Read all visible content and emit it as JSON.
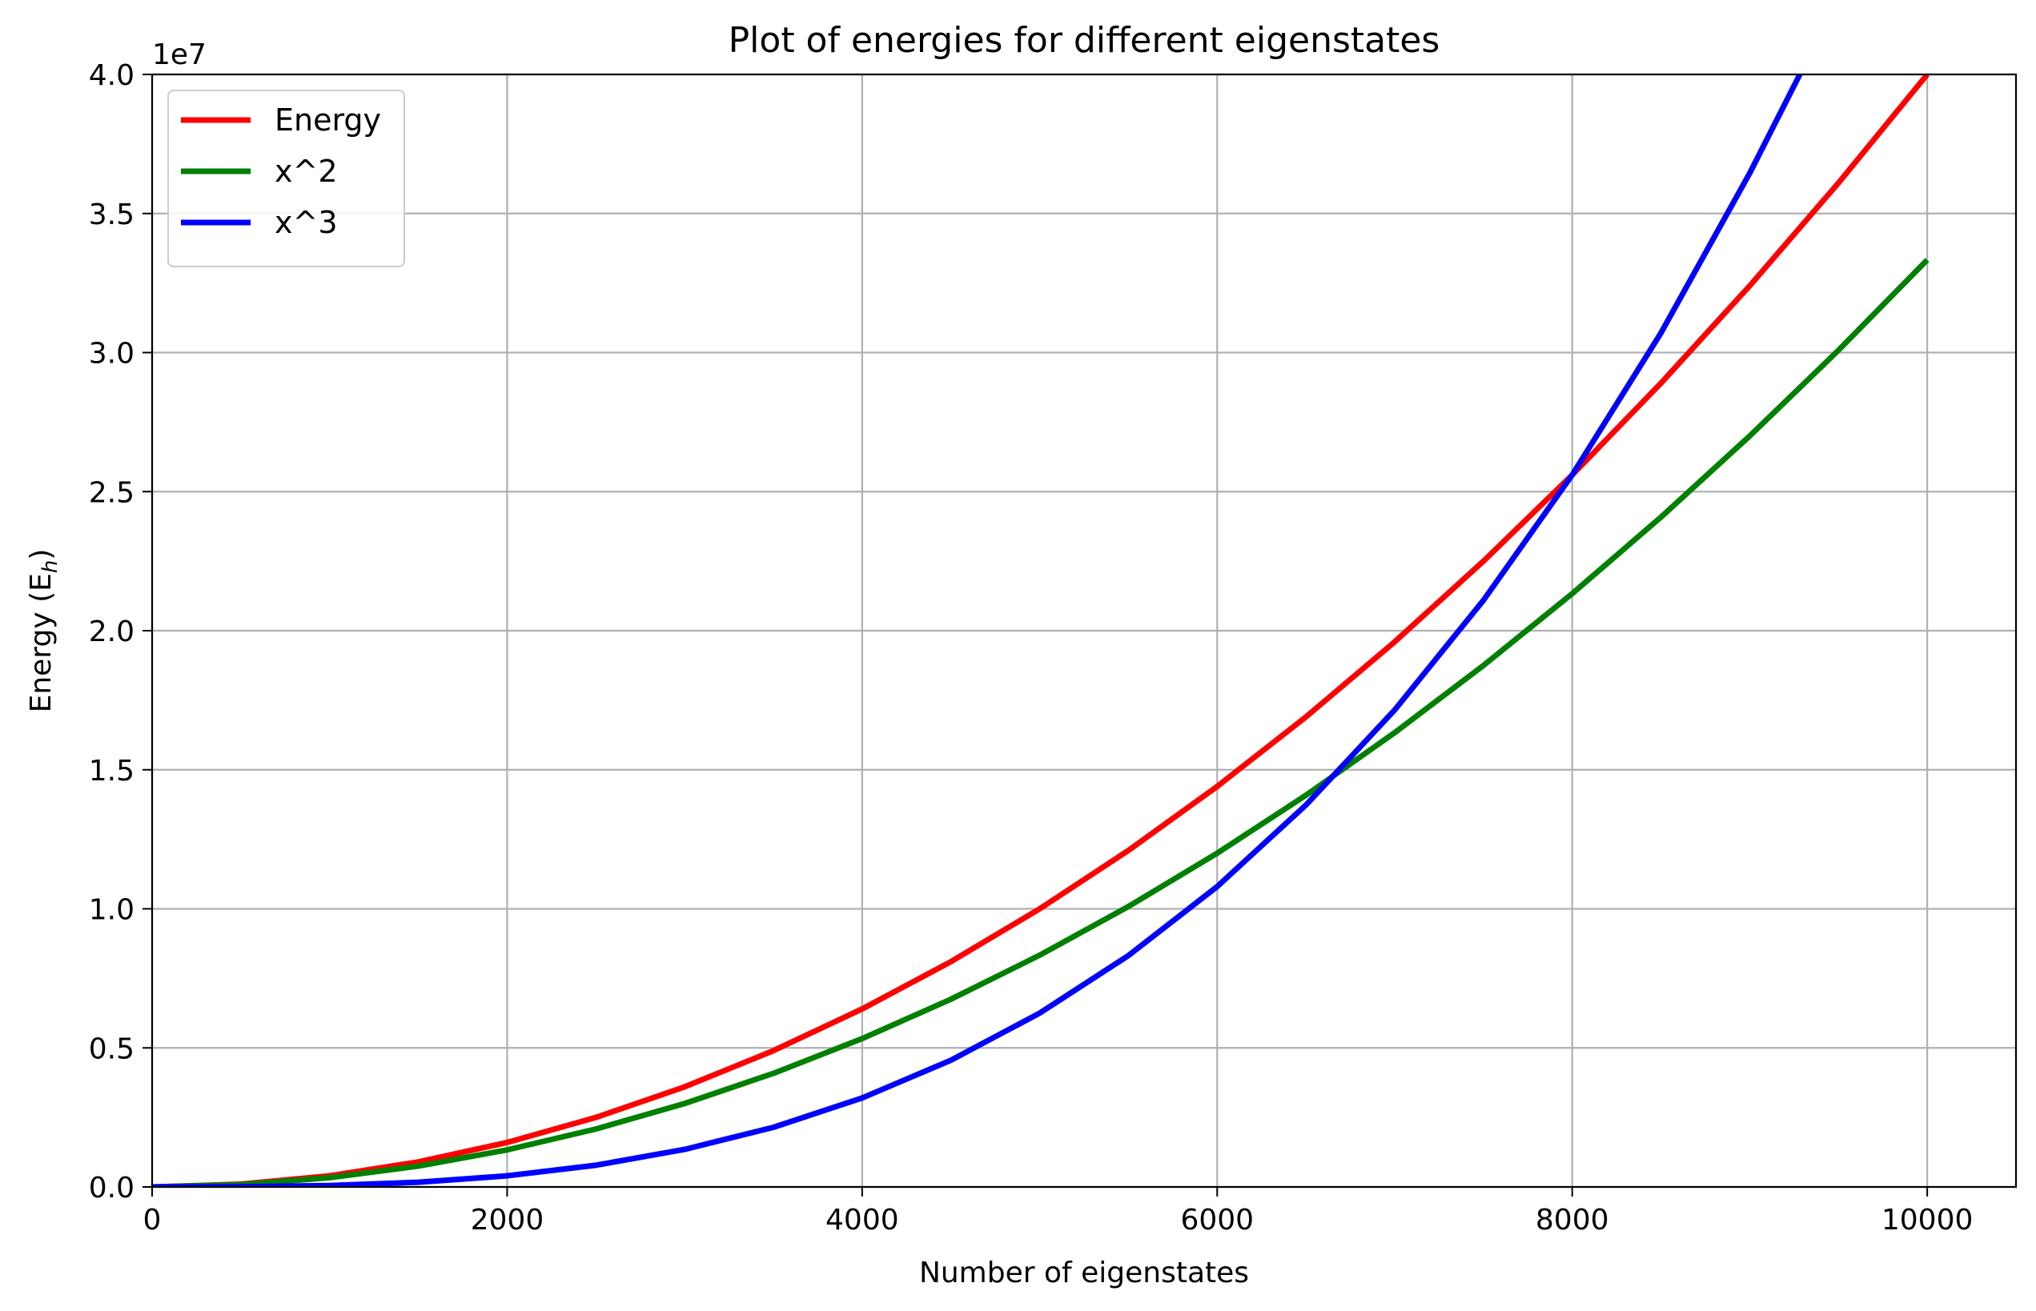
{
  "chart_data": {
    "type": "line",
    "title": "Plot of energies for different eigenstates",
    "xlabel": "Number of eigenstates",
    "ylabel_main": "Energy (E",
    "ylabel_sub": "h",
    "ylabel_close": ")",
    "y_offset_label": "1e7",
    "xlim": [
      0,
      10500
    ],
    "ylim": [
      0,
      40000000
    ],
    "x_ticks": [
      0,
      2000,
      4000,
      6000,
      8000,
      10000
    ],
    "x_tick_labels": [
      "0",
      "2000",
      "4000",
      "6000",
      "8000",
      "10000"
    ],
    "y_ticks": [
      0,
      5000000,
      10000000,
      15000000,
      20000000,
      25000000,
      30000000,
      35000000,
      40000000
    ],
    "y_tick_labels": [
      "0.0",
      "0.5",
      "1.0",
      "1.5",
      "2.0",
      "2.5",
      "3.0",
      "3.5",
      "4.0"
    ],
    "grid": true,
    "legend_position": "top-left",
    "series": [
      {
        "name": "Energy",
        "color": "#ff0000",
        "x": [
          0,
          500,
          1000,
          1500,
          2000,
          2500,
          3000,
          3500,
          4000,
          4500,
          5000,
          5500,
          6000,
          6500,
          7000,
          7500,
          8000,
          8500,
          9000,
          9500,
          10000
        ],
        "y": [
          0,
          100000,
          400000,
          900000,
          1600000,
          2500000,
          3600000,
          4900000,
          6400000,
          8100000,
          10000000,
          12100000,
          14400000,
          16900000,
          19600000,
          22500000,
          25600000,
          28900000,
          32400000,
          36100000,
          40000000
        ]
      },
      {
        "name": "x^2",
        "color": "#008000",
        "x": [
          0,
          500,
          1000,
          1500,
          2000,
          2500,
          3000,
          3500,
          4000,
          4500,
          5000,
          5500,
          6000,
          6500,
          7000,
          7500,
          8000,
          8500,
          9000,
          9500,
          10000
        ],
        "y": [
          0,
          83300,
          333300,
          750000,
          1333300,
          2083300,
          3000000,
          4083300,
          5333300,
          6750000,
          8333300,
          10083300,
          12000000,
          14083300,
          16333300,
          18750000,
          21333300,
          24083300,
          27000000,
          30083300,
          33333300
        ]
      },
      {
        "name": "x^3",
        "color": "#0000ff",
        "x": [
          0,
          500,
          1000,
          1500,
          2000,
          2500,
          3000,
          3500,
          4000,
          4500,
          5000,
          5500,
          6000,
          6500,
          7000,
          7500,
          8000,
          8500,
          9000,
          9300
        ],
        "y": [
          0,
          6250,
          50000,
          168750,
          400000,
          781250,
          1350000,
          2143750,
          3200000,
          4556250,
          6250000,
          8318750,
          10800000,
          13731250,
          17150000,
          21093750,
          25600000,
          30706250,
          36450000,
          40221750
        ]
      }
    ]
  }
}
